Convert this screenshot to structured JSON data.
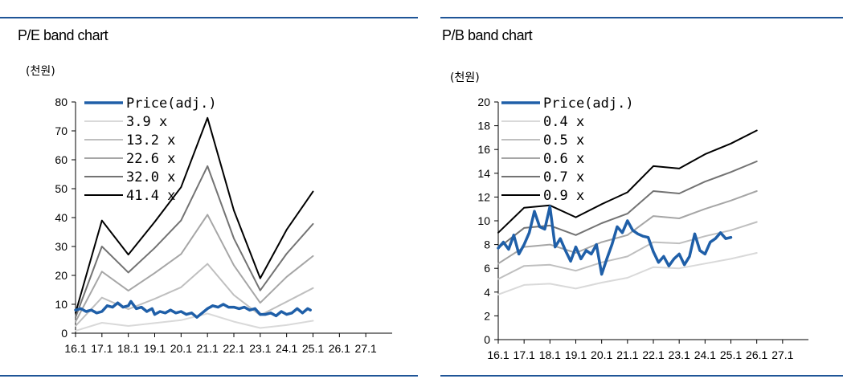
{
  "chart_data": [
    {
      "type": "line",
      "title": "P/E band chart",
      "unit": "(천원)",
      "ylim": [
        0,
        80
      ],
      "yticks": [
        0,
        10,
        20,
        30,
        40,
        50,
        60,
        70,
        80
      ],
      "xticks": [
        "16.1",
        "17.1",
        "18.1",
        "19.1",
        "20.1",
        "21.1",
        "22.1",
        "23.1",
        "24.1",
        "25.1",
        "26.1",
        "27.1"
      ],
      "xlim": [
        0,
        12
      ],
      "grid": false,
      "legend": "top-left",
      "series": [
        {
          "name": "3.9 x",
          "color": "#d9d9d9",
          "width": 2,
          "x": [
            0,
            1,
            2,
            3,
            4,
            5,
            6,
            7,
            8,
            9
          ],
          "y": [
            0.8,
            3.6,
            2.5,
            3.5,
            4.5,
            6.8,
            4.0,
            1.8,
            2.8,
            4.3
          ]
        },
        {
          "name": "13.2 x",
          "color": "#bfbfbf",
          "width": 2,
          "x": [
            0,
            1,
            2,
            3,
            4,
            5,
            6,
            7,
            8,
            9
          ],
          "y": [
            2.5,
            12.3,
            8.3,
            11.9,
            15.9,
            24.0,
            13.2,
            6.2,
            10.9,
            15.6
          ]
        },
        {
          "name": "22.6 x",
          "color": "#a6a6a6",
          "width": 2,
          "x": [
            0,
            1,
            2,
            3,
            4,
            5,
            6,
            7,
            8,
            9
          ],
          "y": [
            4.0,
            21.3,
            14.7,
            20.8,
            27.4,
            41.0,
            23.5,
            10.5,
            19.5,
            26.7
          ]
        },
        {
          "name": "32.0 x",
          "color": "#737373",
          "width": 2,
          "x": [
            0,
            1,
            2,
            3,
            4,
            5,
            6,
            7,
            8,
            9
          ],
          "y": [
            5.5,
            30.0,
            21.0,
            29.5,
            39.0,
            57.8,
            32.8,
            14.8,
            27.5,
            37.8
          ]
        },
        {
          "name": "41.4 x",
          "color": "#000000",
          "width": 2,
          "x": [
            0,
            1,
            2,
            3,
            4,
            5,
            6,
            7,
            8,
            9
          ],
          "y": [
            7.0,
            39.0,
            27.2,
            38.5,
            50.5,
            74.5,
            42.5,
            19.0,
            35.8,
            49.0
          ]
        },
        {
          "name": "Price(adj.)",
          "color": "#1f5fa8",
          "width": 3.5,
          "x": [
            0,
            0.2,
            0.4,
            0.6,
            0.8,
            1.0,
            1.2,
            1.4,
            1.6,
            1.8,
            2.0,
            2.1,
            2.3,
            2.5,
            2.7,
            2.9,
            3.0,
            3.2,
            3.4,
            3.6,
            3.8,
            4.0,
            4.2,
            4.4,
            4.6,
            4.8,
            5.0,
            5.2,
            5.4,
            5.6,
            5.8,
            6.0,
            6.2,
            6.4,
            6.6,
            6.8,
            7.0,
            7.2,
            7.4,
            7.6,
            7.8,
            8.0,
            8.2,
            8.4,
            8.6,
            8.8,
            8.9
          ],
          "y": [
            8.0,
            8.5,
            7.5,
            8.0,
            7.0,
            7.5,
            9.5,
            9.0,
            10.5,
            9.0,
            9.5,
            11.0,
            8.5,
            9.0,
            7.5,
            8.5,
            6.5,
            7.5,
            7.0,
            8.0,
            7.0,
            7.5,
            6.5,
            7.0,
            5.5,
            7.0,
            8.5,
            9.5,
            9.0,
            10.0,
            9.0,
            9.0,
            8.5,
            9.0,
            8.0,
            8.5,
            6.5,
            6.5,
            7.0,
            6.0,
            7.5,
            6.5,
            7.0,
            8.5,
            7.0,
            8.5,
            8.0
          ]
        }
      ]
    },
    {
      "type": "line",
      "title": "P/B band chart",
      "unit": "(천원)",
      "ylim": [
        0,
        20
      ],
      "yticks": [
        0,
        2,
        4,
        6,
        8,
        10,
        12,
        14,
        16,
        18,
        20
      ],
      "xticks": [
        "16.1",
        "17.1",
        "18.1",
        "19.1",
        "20.1",
        "21.1",
        "22.1",
        "23.1",
        "24.1",
        "25.1",
        "26.1",
        "27.1"
      ],
      "xlim": [
        0,
        12
      ],
      "grid": false,
      "legend": "top-left",
      "series": [
        {
          "name": "0.4 x",
          "color": "#d9d9d9",
          "width": 2,
          "x": [
            0,
            1,
            2,
            3,
            4,
            5,
            6,
            7,
            8,
            9,
            10
          ],
          "y": [
            3.8,
            4.6,
            4.7,
            4.3,
            4.8,
            5.2,
            6.1,
            6.0,
            6.4,
            6.8,
            7.3
          ]
        },
        {
          "name": "0.5 x",
          "color": "#bfbfbf",
          "width": 2,
          "x": [
            0,
            1,
            2,
            3,
            4,
            5,
            6,
            7,
            8,
            9,
            10
          ],
          "y": [
            5.1,
            6.2,
            6.3,
            5.8,
            6.5,
            7.0,
            8.2,
            8.1,
            8.7,
            9.2,
            9.9
          ]
        },
        {
          "name": "0.6 x",
          "color": "#a6a6a6",
          "width": 2,
          "x": [
            0,
            1,
            2,
            3,
            4,
            5,
            6,
            7,
            8,
            9,
            10
          ],
          "y": [
            6.4,
            7.8,
            8.0,
            7.3,
            8.2,
            8.8,
            10.4,
            10.2,
            11.0,
            11.7,
            12.5
          ]
        },
        {
          "name": "0.7 x",
          "color": "#737373",
          "width": 2,
          "x": [
            0,
            1,
            2,
            3,
            4,
            5,
            6,
            7,
            8,
            9,
            10
          ],
          "y": [
            7.7,
            9.4,
            9.6,
            8.8,
            9.8,
            10.6,
            12.5,
            12.3,
            13.3,
            14.1,
            15.0
          ]
        },
        {
          "name": "0.9 x",
          "color": "#000000",
          "width": 2,
          "x": [
            0,
            1,
            2,
            3,
            4,
            5,
            6,
            7,
            8,
            9,
            10
          ],
          "y": [
            9.0,
            11.1,
            11.3,
            10.3,
            11.4,
            12.4,
            14.6,
            14.4,
            15.6,
            16.5,
            17.6
          ]
        },
        {
          "name": "Price(adj.)",
          "color": "#1f5fa8",
          "width": 3.5,
          "x": [
            0,
            0.2,
            0.4,
            0.6,
            0.8,
            1.0,
            1.2,
            1.4,
            1.6,
            1.8,
            2.0,
            2.2,
            2.4,
            2.6,
            2.8,
            3.0,
            3.2,
            3.4,
            3.6,
            3.8,
            4.0,
            4.2,
            4.4,
            4.6,
            4.8,
            5.0,
            5.2,
            5.4,
            5.6,
            5.8,
            6.0,
            6.2,
            6.4,
            6.6,
            6.8,
            7.0,
            7.2,
            7.4,
            7.6,
            7.8,
            8.0,
            8.2,
            8.4,
            8.6,
            8.8,
            9.0
          ],
          "y": [
            7.7,
            8.2,
            7.6,
            8.8,
            7.2,
            8.0,
            9.0,
            10.8,
            9.5,
            9.3,
            11.2,
            7.8,
            8.5,
            7.5,
            6.6,
            7.8,
            6.8,
            7.5,
            7.2,
            8.0,
            5.5,
            6.8,
            8.0,
            9.5,
            9.0,
            10.0,
            9.2,
            8.9,
            8.7,
            8.6,
            7.4,
            6.5,
            7.0,
            6.2,
            6.8,
            7.2,
            6.3,
            7.0,
            8.9,
            7.5,
            7.2,
            8.2,
            8.5,
            9.0,
            8.5,
            8.6
          ]
        }
      ]
    }
  ]
}
